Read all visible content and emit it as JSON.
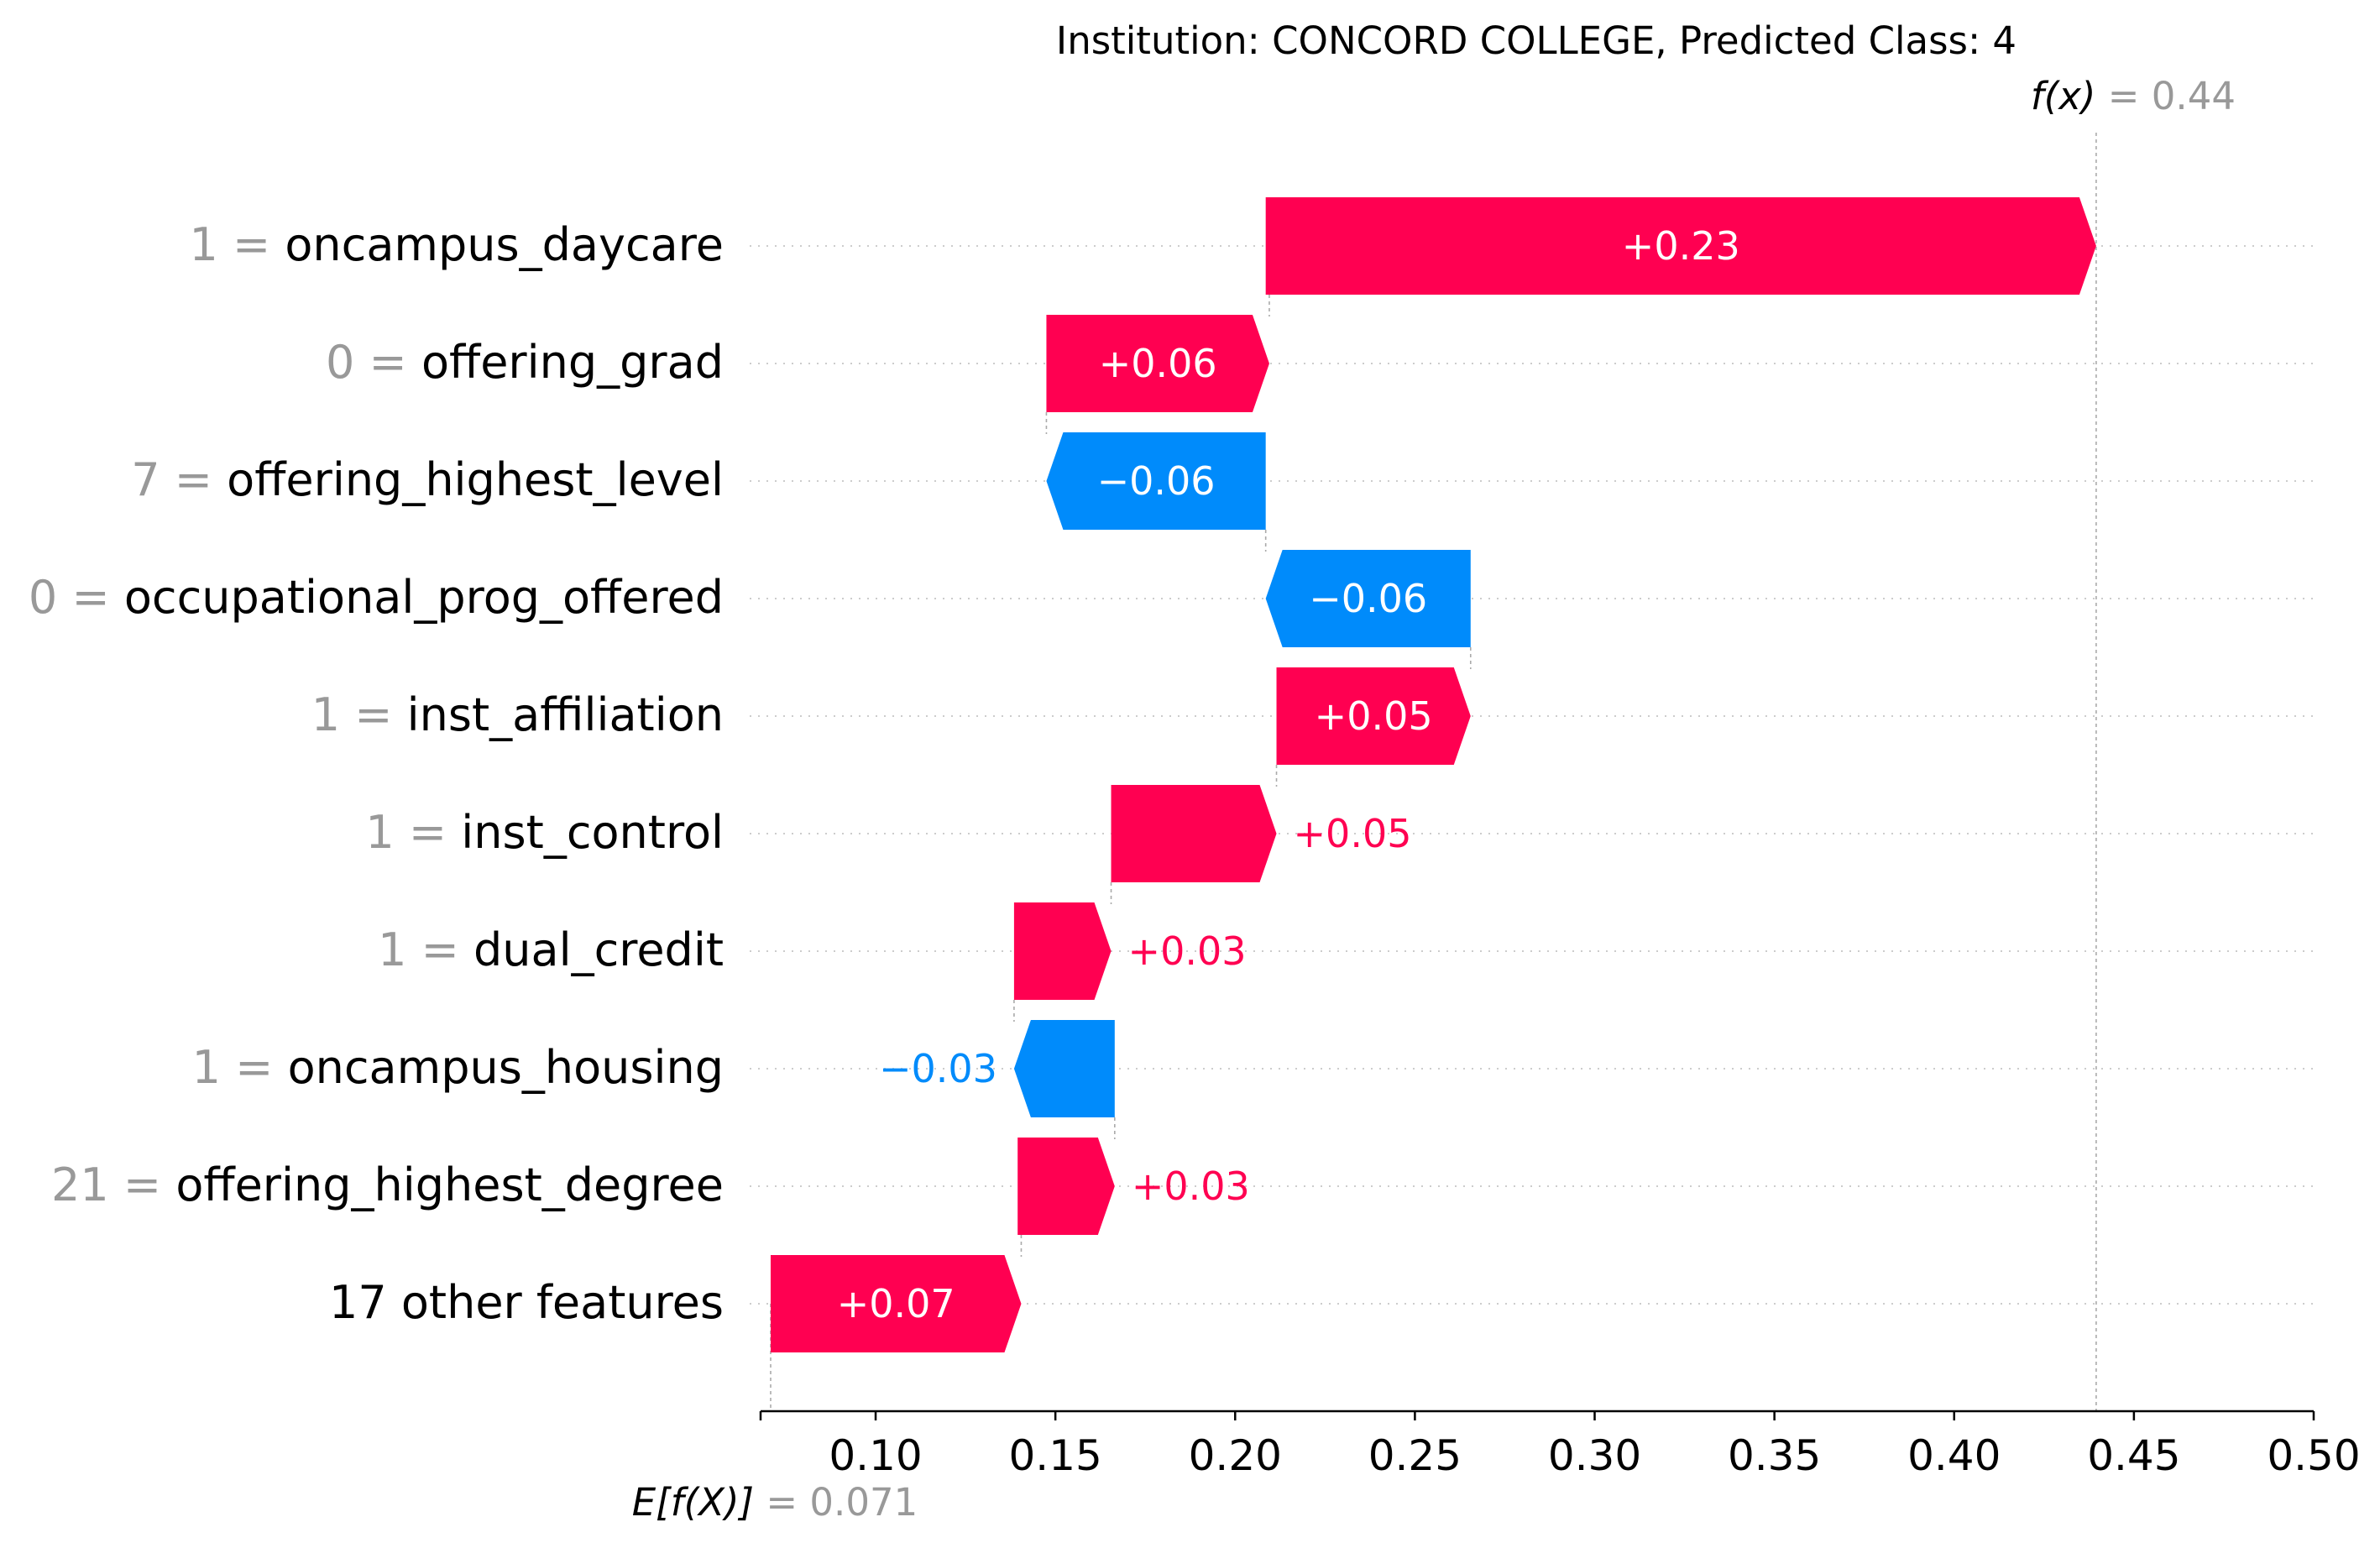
{
  "chart_data": {
    "type": "waterfall",
    "title": "Institution: CONCORD COLLEGE, Predicted Class: 4",
    "fx": {
      "label": "f(x)",
      "equals": "=",
      "value_text": "0.44",
      "value": 0.4395
    },
    "efx": {
      "label": "E[f(X)]",
      "equals": "=",
      "value_text": "0.071",
      "value": 0.0708
    },
    "xlim": [
      0.068,
      0.5
    ],
    "xticks": [
      {
        "value": 0.1,
        "label": "0.10"
      },
      {
        "value": 0.15,
        "label": "0.15"
      },
      {
        "value": 0.2,
        "label": "0.20"
      },
      {
        "value": 0.25,
        "label": "0.25"
      },
      {
        "value": 0.3,
        "label": "0.30"
      },
      {
        "value": 0.35,
        "label": "0.35"
      },
      {
        "value": 0.4,
        "label": "0.40"
      },
      {
        "value": 0.45,
        "label": "0.45"
      },
      {
        "value": 0.5,
        "label": "0.50"
      }
    ],
    "colors": {
      "positive": "#ff0051",
      "negative": "#008bfb",
      "value_gray": "#999999"
    },
    "features": [
      {
        "value_label": "1",
        "name": "oncampus_daycare",
        "start": 0.2085,
        "end": 0.4395,
        "label": "+0.23"
      },
      {
        "value_label": "0",
        "name": "offering_grad",
        "start": 0.1475,
        "end": 0.2095,
        "label": "+0.06"
      },
      {
        "value_label": "7",
        "name": "offering_highest_level",
        "start": 0.2085,
        "end": 0.1475,
        "label": "−0.06"
      },
      {
        "value_label": "0",
        "name": "occupational_prog_offered",
        "start": 0.2655,
        "end": 0.2085,
        "label": "−0.06"
      },
      {
        "value_label": "1",
        "name": "inst_affiliation",
        "start": 0.2115,
        "end": 0.2655,
        "label": "+0.05"
      },
      {
        "value_label": "1",
        "name": "inst_control",
        "start": 0.1655,
        "end": 0.2115,
        "label": "+0.05"
      },
      {
        "value_label": "1",
        "name": "dual_credit",
        "start": 0.1385,
        "end": 0.1655,
        "label": "+0.03"
      },
      {
        "value_label": "1",
        "name": "oncampus_housing",
        "start": 0.1665,
        "end": 0.1385,
        "label": "−0.03"
      },
      {
        "value_label": "21",
        "name": "offering_highest_degree",
        "start": 0.1395,
        "end": 0.1665,
        "label": "+0.03"
      },
      {
        "value_label": "",
        "name": "17 other features",
        "start": 0.0708,
        "end": 0.1405,
        "label": "+0.07"
      }
    ]
  }
}
